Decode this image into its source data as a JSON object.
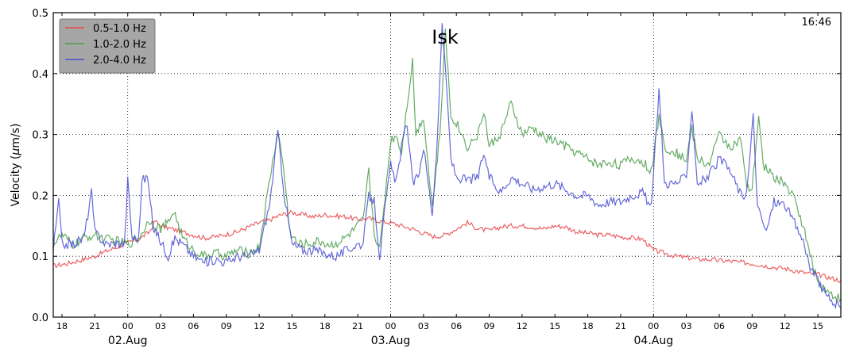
{
  "chart_data": {
    "type": "line",
    "title": "Isk",
    "timestamp": "16:46",
    "ylabel": "Velocity ($\\mu$m/s)",
    "ylabel_plain": "Velocity (",
    "ylabel_mu": "μ",
    "ylabel_rest": "m/s)",
    "ylim": [
      0.0,
      0.5
    ],
    "yticks": [
      "0.0",
      "0.1",
      "0.2",
      "0.3",
      "0.4",
      "0.5"
    ],
    "xlim_hours": [
      -6.8,
      65.1
    ],
    "xticks": [
      {
        "h": -6,
        "label": "18"
      },
      {
        "h": -3,
        "label": "21"
      },
      {
        "h": 0,
        "label": "00"
      },
      {
        "h": 3,
        "label": "03"
      },
      {
        "h": 6,
        "label": "06"
      },
      {
        "h": 9,
        "label": "09"
      },
      {
        "h": 12,
        "label": "12"
      },
      {
        "h": 15,
        "label": "15"
      },
      {
        "h": 18,
        "label": "18"
      },
      {
        "h": 21,
        "label": "21"
      },
      {
        "h": 24,
        "label": "00"
      },
      {
        "h": 27,
        "label": "03"
      },
      {
        "h": 30,
        "label": "06"
      },
      {
        "h": 33,
        "label": "09"
      },
      {
        "h": 36,
        "label": "12"
      },
      {
        "h": 39,
        "label": "15"
      },
      {
        "h": 42,
        "label": "18"
      },
      {
        "h": 45,
        "label": "21"
      },
      {
        "h": 48,
        "label": "00"
      },
      {
        "h": 51,
        "label": "03"
      },
      {
        "h": 54,
        "label": "06"
      },
      {
        "h": 57,
        "label": "09"
      },
      {
        "h": 60,
        "label": "12"
      },
      {
        "h": 63,
        "label": "15"
      }
    ],
    "day_labels": [
      {
        "h": 0,
        "label": "02.Aug"
      },
      {
        "h": 24,
        "label": "03.Aug"
      },
      {
        "h": 48,
        "label": "04.Aug"
      }
    ],
    "grid": true,
    "legend_position": "top-left",
    "series": [
      {
        "name": "0.5-1.0 Hz",
        "color": "#e8474a",
        "points": [
          [
            -6.8,
            0.084
          ],
          [
            -5.5,
            0.088
          ],
          [
            -4,
            0.095
          ],
          [
            -3,
            0.1
          ],
          [
            -2,
            0.108
          ],
          [
            -1,
            0.115
          ],
          [
            0,
            0.122
          ],
          [
            1,
            0.128
          ],
          [
            2,
            0.14
          ],
          [
            2.5,
            0.158
          ],
          [
            3,
            0.15
          ],
          [
            4,
            0.145
          ],
          [
            5,
            0.14
          ],
          [
            6,
            0.135
          ],
          [
            7,
            0.13
          ],
          [
            8,
            0.132
          ],
          [
            9,
            0.136
          ],
          [
            10,
            0.14
          ],
          [
            11,
            0.148
          ],
          [
            12,
            0.155
          ],
          [
            13,
            0.16
          ],
          [
            14,
            0.168
          ],
          [
            15,
            0.172
          ],
          [
            16,
            0.168
          ],
          [
            17,
            0.165
          ],
          [
            18,
            0.168
          ],
          [
            19,
            0.166
          ],
          [
            20,
            0.165
          ],
          [
            21,
            0.16
          ],
          [
            22,
            0.162
          ],
          [
            23,
            0.158
          ],
          [
            24,
            0.155
          ],
          [
            25,
            0.15
          ],
          [
            26,
            0.145
          ],
          [
            27,
            0.138
          ],
          [
            28,
            0.132
          ],
          [
            29,
            0.135
          ],
          [
            30,
            0.145
          ],
          [
            31,
            0.155
          ],
          [
            32,
            0.145
          ],
          [
            33,
            0.142
          ],
          [
            34,
            0.148
          ],
          [
            35,
            0.15
          ],
          [
            36,
            0.15
          ],
          [
            37,
            0.148
          ],
          [
            38,
            0.145
          ],
          [
            39,
            0.15
          ],
          [
            40,
            0.148
          ],
          [
            41,
            0.14
          ],
          [
            42,
            0.138
          ],
          [
            43,
            0.135
          ],
          [
            44,
            0.135
          ],
          [
            45,
            0.132
          ],
          [
            46,
            0.13
          ],
          [
            47,
            0.128
          ],
          [
            48,
            0.11
          ],
          [
            49,
            0.105
          ],
          [
            50,
            0.1
          ],
          [
            51,
            0.098
          ],
          [
            52,
            0.095
          ],
          [
            53,
            0.095
          ],
          [
            54,
            0.093
          ],
          [
            55,
            0.092
          ],
          [
            56,
            0.09
          ],
          [
            57,
            0.088
          ],
          [
            58,
            0.085
          ],
          [
            59,
            0.082
          ],
          [
            60,
            0.08
          ],
          [
            61,
            0.076
          ],
          [
            62,
            0.072
          ],
          [
            63,
            0.07
          ],
          [
            64,
            0.065
          ],
          [
            65.1,
            0.06
          ]
        ]
      },
      {
        "name": "1.0-2.0 Hz",
        "color": "#4a9e4a",
        "points": [
          [
            -6.8,
            0.12
          ],
          [
            -6,
            0.135
          ],
          [
            -5,
            0.118
          ],
          [
            -4,
            0.13
          ],
          [
            -3,
            0.135
          ],
          [
            -2,
            0.128
          ],
          [
            -1,
            0.125
          ],
          [
            0,
            0.12
          ],
          [
            1,
            0.13
          ],
          [
            2,
            0.16
          ],
          [
            3,
            0.145
          ],
          [
            3.7,
            0.155
          ],
          [
            4.2,
            0.175
          ],
          [
            5,
            0.13
          ],
          [
            6,
            0.11
          ],
          [
            7,
            0.1
          ],
          [
            8,
            0.105
          ],
          [
            9,
            0.1
          ],
          [
            10,
            0.11
          ],
          [
            11,
            0.105
          ],
          [
            12,
            0.115
          ],
          [
            13,
            0.23
          ],
          [
            13.7,
            0.305
          ],
          [
            14.2,
            0.25
          ],
          [
            14.8,
            0.14
          ],
          [
            15.5,
            0.12
          ],
          [
            16.5,
            0.12
          ],
          [
            17.5,
            0.125
          ],
          [
            18.5,
            0.118
          ],
          [
            19.5,
            0.125
          ],
          [
            20.5,
            0.14
          ],
          [
            21.5,
            0.16
          ],
          [
            22,
            0.24
          ],
          [
            22.5,
            0.14
          ],
          [
            23,
            0.11
          ],
          [
            23.5,
            0.2
          ],
          [
            24,
            0.29
          ],
          [
            24.5,
            0.3
          ],
          [
            25,
            0.27
          ],
          [
            25.5,
            0.35
          ],
          [
            26,
            0.42
          ],
          [
            26.3,
            0.3
          ],
          [
            27,
            0.33
          ],
          [
            27.8,
            0.18
          ],
          [
            28.5,
            0.3
          ],
          [
            29,
            0.47
          ],
          [
            29.5,
            0.33
          ],
          [
            30,
            0.32
          ],
          [
            31,
            0.28
          ],
          [
            32,
            0.3
          ],
          [
            32.5,
            0.34
          ],
          [
            33,
            0.28
          ],
          [
            34,
            0.3
          ],
          [
            35,
            0.35
          ],
          [
            36,
            0.3
          ],
          [
            37,
            0.31
          ],
          [
            38,
            0.295
          ],
          [
            39,
            0.29
          ],
          [
            40,
            0.28
          ],
          [
            41,
            0.27
          ],
          [
            42,
            0.26
          ],
          [
            43,
            0.25
          ],
          [
            44,
            0.255
          ],
          [
            45,
            0.25
          ],
          [
            46,
            0.26
          ],
          [
            47,
            0.255
          ],
          [
            47.8,
            0.24
          ],
          [
            48.5,
            0.33
          ],
          [
            49,
            0.28
          ],
          [
            50,
            0.27
          ],
          [
            51,
            0.26
          ],
          [
            51.5,
            0.31
          ],
          [
            52,
            0.26
          ],
          [
            53,
            0.25
          ],
          [
            54,
            0.3
          ],
          [
            55,
            0.28
          ],
          [
            56,
            0.29
          ],
          [
            56.5,
            0.21
          ],
          [
            57,
            0.21
          ],
          [
            57.6,
            0.33
          ],
          [
            58,
            0.25
          ],
          [
            59,
            0.23
          ],
          [
            60,
            0.22
          ],
          [
            61,
            0.19
          ],
          [
            61.8,
            0.14
          ],
          [
            62.3,
            0.1
          ],
          [
            63,
            0.06
          ],
          [
            64,
            0.04
          ],
          [
            65.1,
            0.03
          ]
        ]
      },
      {
        "name": "2.0-4.0 Hz",
        "color": "#4b4fd3",
        "points": [
          [
            -6.8,
            0.11
          ],
          [
            -6.3,
            0.19
          ],
          [
            -6,
            0.12
          ],
          [
            -5,
            0.12
          ],
          [
            -4,
            0.13
          ],
          [
            -3.3,
            0.205
          ],
          [
            -3,
            0.14
          ],
          [
            -2,
            0.12
          ],
          [
            -1,
            0.122
          ],
          [
            -0.3,
            0.12
          ],
          [
            0,
            0.225
          ],
          [
            0.4,
            0.13
          ],
          [
            1,
            0.13
          ],
          [
            1.3,
            0.225
          ],
          [
            1.8,
            0.23
          ],
          [
            2.3,
            0.15
          ],
          [
            3,
            0.125
          ],
          [
            3.7,
            0.1
          ],
          [
            4.3,
            0.13
          ],
          [
            5,
            0.12
          ],
          [
            6,
            0.1
          ],
          [
            7,
            0.09
          ],
          [
            8,
            0.095
          ],
          [
            9,
            0.09
          ],
          [
            10,
            0.1
          ],
          [
            11,
            0.1
          ],
          [
            12,
            0.11
          ],
          [
            13,
            0.19
          ],
          [
            13.7,
            0.305
          ],
          [
            14.3,
            0.2
          ],
          [
            15,
            0.12
          ],
          [
            16,
            0.11
          ],
          [
            17,
            0.11
          ],
          [
            18,
            0.105
          ],
          [
            19,
            0.1
          ],
          [
            20,
            0.11
          ],
          [
            21,
            0.12
          ],
          [
            21.5,
            0.12
          ],
          [
            22,
            0.2
          ],
          [
            22.5,
            0.19
          ],
          [
            23,
            0.1
          ],
          [
            23.5,
            0.18
          ],
          [
            24,
            0.25
          ],
          [
            24.5,
            0.22
          ],
          [
            25,
            0.28
          ],
          [
            25.5,
            0.32
          ],
          [
            26,
            0.22
          ],
          [
            26.5,
            0.23
          ],
          [
            27,
            0.28
          ],
          [
            27.8,
            0.17
          ],
          [
            28.3,
            0.3
          ],
          [
            28.7,
            0.485
          ],
          [
            29.2,
            0.35
          ],
          [
            29.5,
            0.26
          ],
          [
            30,
            0.23
          ],
          [
            31,
            0.225
          ],
          [
            32,
            0.23
          ],
          [
            32.5,
            0.27
          ],
          [
            33,
            0.23
          ],
          [
            34,
            0.205
          ],
          [
            35,
            0.23
          ],
          [
            36,
            0.22
          ],
          [
            37,
            0.21
          ],
          [
            38,
            0.215
          ],
          [
            39,
            0.22
          ],
          [
            40,
            0.21
          ],
          [
            41,
            0.2
          ],
          [
            42,
            0.2
          ],
          [
            43,
            0.185
          ],
          [
            44,
            0.19
          ],
          [
            45,
            0.19
          ],
          [
            46,
            0.2
          ],
          [
            47,
            0.205
          ],
          [
            47.8,
            0.18
          ],
          [
            48.5,
            0.375
          ],
          [
            49,
            0.22
          ],
          [
            50,
            0.22
          ],
          [
            51,
            0.23
          ],
          [
            51.5,
            0.345
          ],
          [
            52,
            0.22
          ],
          [
            53,
            0.23
          ],
          [
            54,
            0.26
          ],
          [
            55,
            0.24
          ],
          [
            56,
            0.2
          ],
          [
            56.5,
            0.2
          ],
          [
            57.1,
            0.33
          ],
          [
            57.5,
            0.18
          ],
          [
            58.3,
            0.14
          ],
          [
            59,
            0.19
          ],
          [
            60,
            0.185
          ],
          [
            61,
            0.15
          ],
          [
            61.8,
            0.12
          ],
          [
            62.3,
            0.08
          ],
          [
            63,
            0.06
          ],
          [
            64,
            0.03
          ],
          [
            65.1,
            0.015
          ]
        ]
      }
    ]
  }
}
